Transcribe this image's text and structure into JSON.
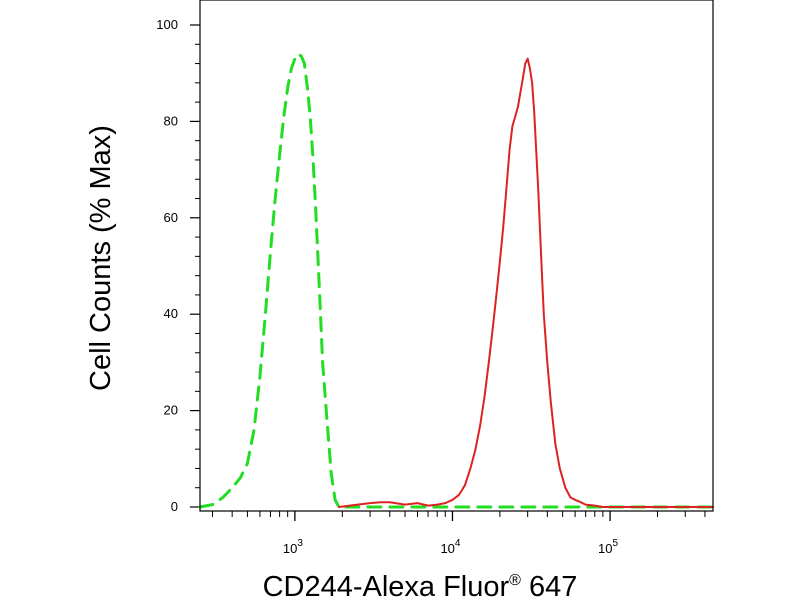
{
  "chart_data": {
    "type": "line",
    "title": "",
    "xlabel": "CD244-Alexa Fluor",
    "xlabel_mark": "®",
    "xlabel_suffix": " 647",
    "ylabel": "Cell Counts (% Max)",
    "x_scale": "log",
    "xlim": [
      250,
      450000
    ],
    "ylim": [
      0,
      100
    ],
    "y_ticks": [
      0,
      20,
      40,
      60,
      80,
      100
    ],
    "x_ticks": [
      {
        "value": 1000,
        "base": "10",
        "exp": "3"
      },
      {
        "value": 10000,
        "base": "10",
        "exp": "4"
      },
      {
        "value": 100000,
        "base": "10",
        "exp": "5"
      }
    ],
    "grid": false,
    "series": [
      {
        "style": "dashed",
        "color": "#22dd22",
        "points": [
          [
            250,
            0
          ],
          [
            300,
            0.5
          ],
          [
            350,
            2
          ],
          [
            400,
            4
          ],
          [
            450,
            6
          ],
          [
            500,
            9
          ],
          [
            550,
            16
          ],
          [
            600,
            27
          ],
          [
            650,
            40
          ],
          [
            700,
            53
          ],
          [
            750,
            64
          ],
          [
            800,
            73
          ],
          [
            850,
            81
          ],
          [
            900,
            87
          ],
          [
            950,
            91
          ],
          [
            1000,
            93
          ],
          [
            1050,
            94
          ],
          [
            1100,
            93.5
          ],
          [
            1150,
            92
          ],
          [
            1200,
            87
          ],
          [
            1250,
            81
          ],
          [
            1300,
            73
          ],
          [
            1350,
            63
          ],
          [
            1400,
            52
          ],
          [
            1450,
            41
          ],
          [
            1500,
            30
          ],
          [
            1600,
            18
          ],
          [
            1700,
            7
          ],
          [
            1800,
            1.5
          ],
          [
            1900,
            0
          ],
          [
            10000,
            0
          ],
          [
            100000,
            0
          ],
          [
            450000,
            0
          ]
        ]
      },
      {
        "style": "solid",
        "color": "#dd2222",
        "points": [
          [
            1900,
            0
          ],
          [
            2500,
            0.5
          ],
          [
            3000,
            0.8
          ],
          [
            3500,
            1
          ],
          [
            4000,
            1
          ],
          [
            5000,
            0.5
          ],
          [
            6000,
            0.8
          ],
          [
            7000,
            0.3
          ],
          [
            8000,
            0.5
          ],
          [
            9000,
            0.8
          ],
          [
            10000,
            1.5
          ],
          [
            11000,
            2.5
          ],
          [
            12000,
            4.5
          ],
          [
            13000,
            8
          ],
          [
            14000,
            12
          ],
          [
            15000,
            17
          ],
          [
            16000,
            23
          ],
          [
            17000,
            30
          ],
          [
            18000,
            37
          ],
          [
            19000,
            44
          ],
          [
            20000,
            51
          ],
          [
            21000,
            58
          ],
          [
            22000,
            66
          ],
          [
            23000,
            74
          ],
          [
            24000,
            79
          ],
          [
            25000,
            81
          ],
          [
            26000,
            83
          ],
          [
            27000,
            86
          ],
          [
            28000,
            89
          ],
          [
            29000,
            92
          ],
          [
            30000,
            93
          ],
          [
            31000,
            91
          ],
          [
            32000,
            88
          ],
          [
            33000,
            82
          ],
          [
            34000,
            74
          ],
          [
            35000,
            66
          ],
          [
            36000,
            57
          ],
          [
            37000,
            48
          ],
          [
            38000,
            40
          ],
          [
            40000,
            30
          ],
          [
            42000,
            22
          ],
          [
            45000,
            13
          ],
          [
            48000,
            8
          ],
          [
            52000,
            4
          ],
          [
            56000,
            2
          ],
          [
            60000,
            1.5
          ],
          [
            65000,
            1
          ],
          [
            70000,
            0.5
          ],
          [
            80000,
            0.3
          ],
          [
            90000,
            0
          ],
          [
            100000,
            0
          ],
          [
            450000,
            0
          ]
        ]
      }
    ]
  }
}
